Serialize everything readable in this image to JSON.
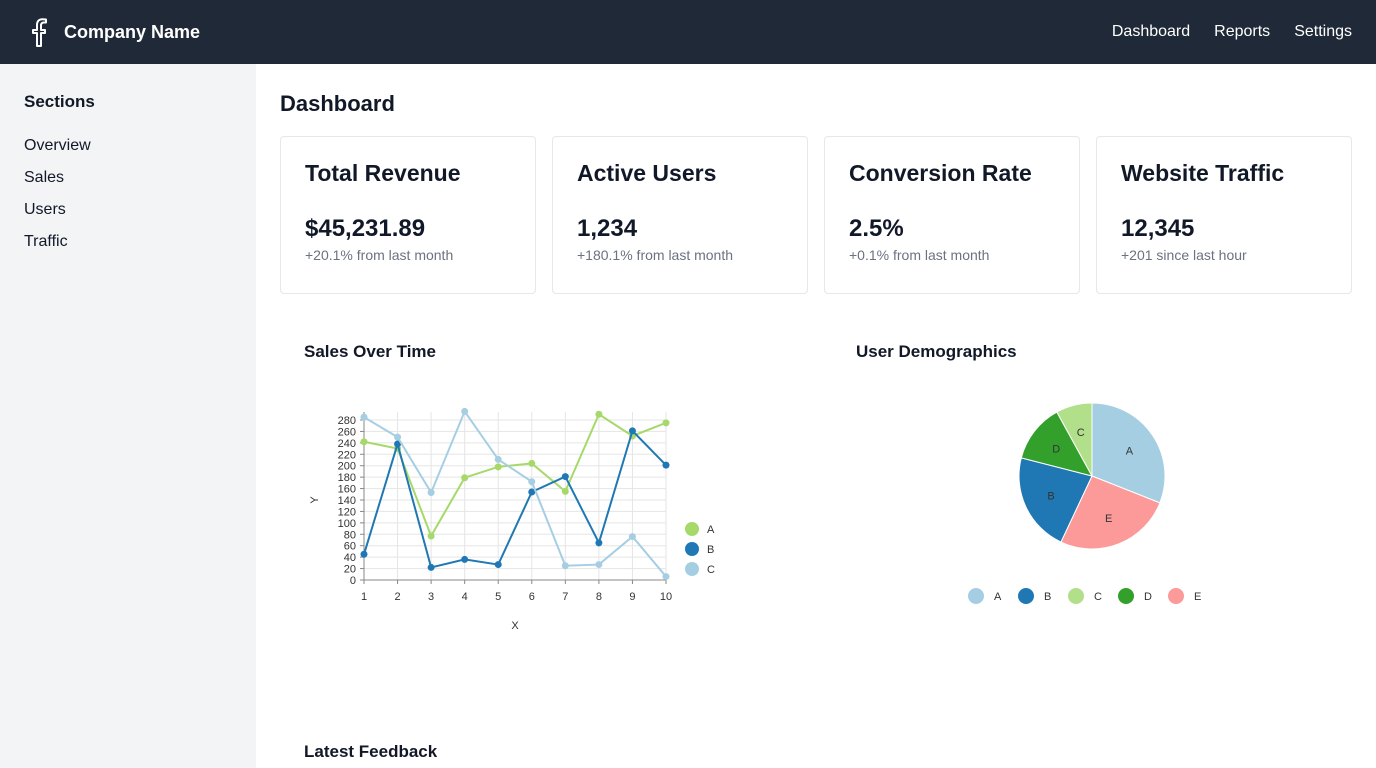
{
  "header": {
    "brand": "Company Name",
    "logo_icon": "facebook-f-icon",
    "nav": [
      "Dashboard",
      "Reports",
      "Settings"
    ]
  },
  "sidebar": {
    "title": "Sections",
    "items": [
      "Overview",
      "Sales",
      "Users",
      "Traffic"
    ]
  },
  "main": {
    "title": "Dashboard",
    "cards": [
      {
        "title": "Total Revenue",
        "value": "$45,231.89",
        "sub": "+20.1% from last month"
      },
      {
        "title": "Active Users",
        "value": "1,234",
        "sub": "+180.1% from last month"
      },
      {
        "title": "Conversion Rate",
        "value": "2.5%",
        "sub": "+0.1% from last month"
      },
      {
        "title": "Website Traffic",
        "value": "12,345",
        "sub": "+201 since last hour"
      }
    ],
    "sales_chart_title": "Sales Over Time",
    "demographics_chart_title": "User Demographics",
    "feedback_title": "Latest Feedback"
  },
  "colors": {
    "header_bg": "#1f2937",
    "sidebar_bg": "#f3f4f6",
    "A": "#a6d96a",
    "B": "#1f78b4",
    "C": "#a6cee3",
    "D": "#33a02c",
    "E": "#fb9a99"
  },
  "chart_data": [
    {
      "type": "line",
      "title": "Sales Over Time",
      "xlabel": "X",
      "ylabel": "Y",
      "x": [
        1,
        2,
        3,
        4,
        5,
        6,
        7,
        8,
        9,
        10
      ],
      "ylim": [
        0,
        280
      ],
      "yticks": [
        0,
        20,
        40,
        60,
        80,
        100,
        120,
        140,
        160,
        180,
        200,
        220,
        240,
        260,
        280
      ],
      "grid": true,
      "legend_position": "right",
      "series": [
        {
          "name": "A",
          "color": "#a6d96a",
          "values": [
            242,
            230,
            77,
            179,
            198,
            204,
            155,
            290,
            252,
            275
          ]
        },
        {
          "name": "B",
          "color": "#1f78b4",
          "values": [
            45,
            238,
            22,
            36,
            27,
            154,
            181,
            65,
            261,
            201
          ]
        },
        {
          "name": "C",
          "color": "#a6cee3",
          "values": [
            285,
            250,
            153,
            295,
            211,
            172,
            25,
            27,
            76,
            6
          ]
        }
      ]
    },
    {
      "type": "pie",
      "title": "User Demographics",
      "legend_position": "bottom",
      "slices": [
        {
          "label": "A",
          "value": 31,
          "color": "#a6cee3"
        },
        {
          "label": "E",
          "value": 26,
          "color": "#fb9a99"
        },
        {
          "label": "B",
          "value": 22,
          "color": "#1f78b4"
        },
        {
          "label": "D",
          "value": 13,
          "color": "#33a02c"
        },
        {
          "label": "C",
          "value": 8,
          "color": "#b2df8a"
        }
      ],
      "legend": [
        "A",
        "B",
        "C",
        "D",
        "E"
      ]
    }
  ]
}
